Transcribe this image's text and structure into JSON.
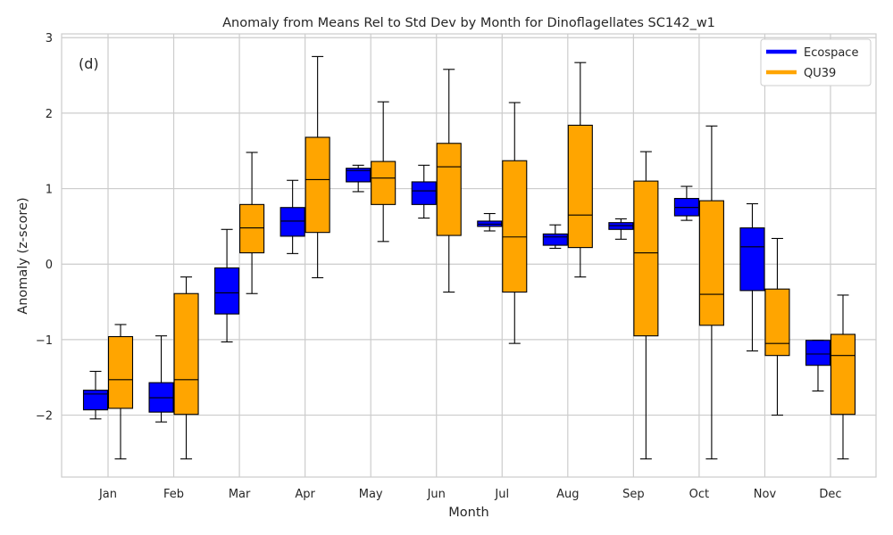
{
  "chart_data": {
    "type": "box",
    "title": "Anomaly from Means Rel to Std Dev by Month for Dinoflagellates SC142_w1",
    "panel_label": "(d)",
    "xlabel": "Month",
    "ylabel": "Anomaly (z-score)",
    "ylim": [
      -2.82,
      3.05
    ],
    "yticks": [
      -2,
      -1,
      0,
      1,
      2,
      3
    ],
    "ytick_labels": [
      "−2",
      "−1",
      "0",
      "1",
      "2",
      "3"
    ],
    "grid": true,
    "legend_position": "top-right",
    "categories": [
      "Jan",
      "Feb",
      "Mar",
      "Apr",
      "May",
      "Jun",
      "Jul",
      "Aug",
      "Sep",
      "Oct",
      "Nov",
      "Dec"
    ],
    "series": [
      {
        "name": "Ecospace",
        "color": "#0000ff",
        "boxes": [
          {
            "min": -2.05,
            "q1": -1.93,
            "median": -1.72,
            "q3": -1.67,
            "max": -1.42
          },
          {
            "min": -2.09,
            "q1": -1.96,
            "median": -1.77,
            "q3": -1.57,
            "max": -0.95
          },
          {
            "min": -1.03,
            "q1": -0.66,
            "median": -0.38,
            "q3": -0.05,
            "max": 0.46
          },
          {
            "min": 0.14,
            "q1": 0.37,
            "median": 0.57,
            "q3": 0.75,
            "max": 1.11
          },
          {
            "min": 0.96,
            "q1": 1.09,
            "median": 1.24,
            "q3": 1.27,
            "max": 1.31
          },
          {
            "min": 0.61,
            "q1": 0.79,
            "median": 0.97,
            "q3": 1.09,
            "max": 1.31
          },
          {
            "min": 0.44,
            "q1": 0.5,
            "median": 0.53,
            "q3": 0.57,
            "max": 0.67
          },
          {
            "min": 0.21,
            "q1": 0.25,
            "median": 0.36,
            "q3": 0.4,
            "max": 0.52
          },
          {
            "min": 0.33,
            "q1": 0.46,
            "median": 0.51,
            "q3": 0.55,
            "max": 0.6
          },
          {
            "min": 0.58,
            "q1": 0.64,
            "median": 0.75,
            "q3": 0.87,
            "max": 1.03
          },
          {
            "min": -1.15,
            "q1": -0.35,
            "median": 0.23,
            "q3": 0.48,
            "max": 0.8
          },
          {
            "min": -1.68,
            "q1": -1.34,
            "median": -1.19,
            "q3": -1.01,
            "max": -1.01
          }
        ]
      },
      {
        "name": "QU39",
        "color": "#ffa500",
        "boxes": [
          {
            "min": -2.58,
            "q1": -1.91,
            "median": -1.53,
            "q3": -0.96,
            "max": -0.8
          },
          {
            "min": -2.58,
            "q1": -1.99,
            "median": -1.53,
            "q3": -0.39,
            "max": -0.17
          },
          {
            "min": -0.39,
            "q1": 0.15,
            "median": 0.48,
            "q3": 0.79,
            "max": 1.48
          },
          {
            "min": -0.18,
            "q1": 0.42,
            "median": 1.12,
            "q3": 1.68,
            "max": 2.75
          },
          {
            "min": 0.3,
            "q1": 0.79,
            "median": 1.14,
            "q3": 1.36,
            "max": 2.15
          },
          {
            "min": -0.37,
            "q1": 0.38,
            "median": 1.29,
            "q3": 1.6,
            "max": 2.58
          },
          {
            "min": -1.05,
            "q1": -0.37,
            "median": 0.36,
            "q3": 1.37,
            "max": 2.14
          },
          {
            "min": -0.17,
            "q1": 0.22,
            "median": 0.65,
            "q3": 1.84,
            "max": 2.67
          },
          {
            "min": -2.58,
            "q1": -0.95,
            "median": 0.15,
            "q3": 1.1,
            "max": 1.49
          },
          {
            "min": -2.58,
            "q1": -0.81,
            "median": -0.4,
            "q3": 0.84,
            "max": 1.83
          },
          {
            "min": -2.0,
            "q1": -1.21,
            "median": -1.05,
            "q3": -0.33,
            "max": 0.34
          },
          {
            "min": -2.58,
            "q1": -1.99,
            "median": -1.21,
            "q3": -0.93,
            "max": -0.41
          }
        ]
      }
    ]
  }
}
